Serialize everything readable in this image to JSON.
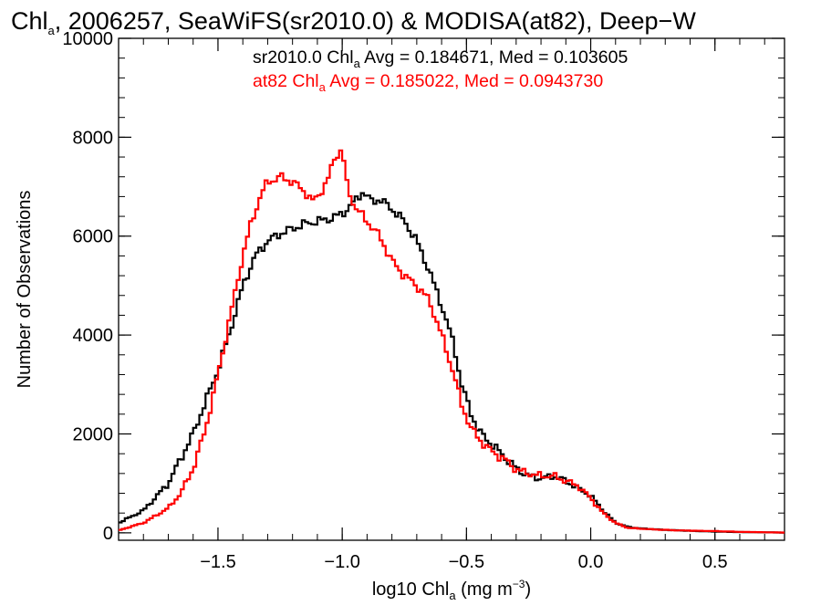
{
  "chart_data": {
    "type": "line",
    "title": {
      "prefix": "Chl",
      "sub": "a",
      "rest": ", 2006257, SeaWiFS(sr2010.0) & MODISA(at82), Deep−W"
    },
    "xlabel": {
      "prefix": "log10 Chl",
      "sub": "a",
      "mid": " (mg m",
      "sup": "−3",
      "suffix": ")"
    },
    "ylabel": "Number of Observations",
    "xlim": [
      -1.9,
      0.78
    ],
    "ylim": [
      -150,
      10000
    ],
    "x_ticks": [
      -1.5,
      -1.0,
      -0.5,
      0.0,
      0.5
    ],
    "x_tick_labels": [
      "−1.5",
      "−1.0",
      "−0.5",
      "0.0",
      "0.5"
    ],
    "y_ticks": [
      0,
      2000,
      4000,
      6000,
      8000,
      10000
    ],
    "y_tick_labels": [
      "0",
      "2000",
      "4000",
      "6000",
      "8000",
      "10000"
    ],
    "grid": false,
    "legend_position": "top",
    "series": [
      {
        "legend": {
          "prefix": "sr2010.0 Chl",
          "sub": "a",
          "rest": " Avg = 0.184671, Med = 0.103605"
        },
        "color": "#000000",
        "points": [
          [
            -1.9,
            200
          ],
          [
            -1.8,
            450
          ],
          [
            -1.7,
            1000
          ],
          [
            -1.6,
            2000
          ],
          [
            -1.5,
            3300
          ],
          [
            -1.45,
            4100
          ],
          [
            -1.4,
            5000
          ],
          [
            -1.35,
            5600
          ],
          [
            -1.3,
            5900
          ],
          [
            -1.25,
            6050
          ],
          [
            -1.2,
            6150
          ],
          [
            -1.15,
            6250
          ],
          [
            -1.1,
            6300
          ],
          [
            -1.05,
            6350
          ],
          [
            -1.0,
            6450
          ],
          [
            -0.95,
            6700
          ],
          [
            -0.92,
            6900
          ],
          [
            -0.88,
            6700
          ],
          [
            -0.85,
            6750
          ],
          [
            -0.8,
            6550
          ],
          [
            -0.75,
            6300
          ],
          [
            -0.7,
            5900
          ],
          [
            -0.65,
            5300
          ],
          [
            -0.6,
            4600
          ],
          [
            -0.55,
            3800
          ],
          [
            -0.52,
            3000
          ],
          [
            -0.48,
            2400
          ],
          [
            -0.45,
            2050
          ],
          [
            -0.4,
            1800
          ],
          [
            -0.35,
            1550
          ],
          [
            -0.3,
            1300
          ],
          [
            -0.25,
            1150
          ],
          [
            -0.2,
            1100
          ],
          [
            -0.15,
            1150
          ],
          [
            -0.1,
            1050
          ],
          [
            -0.05,
            900
          ],
          [
            0.0,
            750
          ],
          [
            0.05,
            450
          ],
          [
            0.1,
            200
          ],
          [
            0.15,
            120
          ],
          [
            0.2,
            90
          ],
          [
            0.3,
            60
          ],
          [
            0.4,
            40
          ],
          [
            0.5,
            25
          ],
          [
            0.6,
            15
          ],
          [
            0.78,
            5
          ]
        ]
      },
      {
        "legend": {
          "prefix": "at82 Chl",
          "sub": "a",
          "rest": " Avg = 0.185022, Med = 0.0943730"
        },
        "color": "#ff0000",
        "points": [
          [
            -1.9,
            50
          ],
          [
            -1.8,
            200
          ],
          [
            -1.7,
            500
          ],
          [
            -1.65,
            800
          ],
          [
            -1.6,
            1300
          ],
          [
            -1.55,
            2100
          ],
          [
            -1.5,
            3200
          ],
          [
            -1.45,
            4400
          ],
          [
            -1.4,
            5600
          ],
          [
            -1.37,
            6200
          ],
          [
            -1.33,
            6800
          ],
          [
            -1.3,
            7100
          ],
          [
            -1.27,
            7150
          ],
          [
            -1.25,
            7200
          ],
          [
            -1.2,
            7100
          ],
          [
            -1.15,
            6900
          ],
          [
            -1.12,
            6700
          ],
          [
            -1.1,
            6800
          ],
          [
            -1.06,
            7100
          ],
          [
            -1.03,
            7600
          ],
          [
            -1.0,
            7750
          ],
          [
            -0.98,
            7000
          ],
          [
            -0.95,
            6600
          ],
          [
            -0.9,
            6300
          ],
          [
            -0.85,
            6000
          ],
          [
            -0.8,
            5500
          ],
          [
            -0.75,
            5200
          ],
          [
            -0.7,
            5000
          ],
          [
            -0.65,
            4700
          ],
          [
            -0.6,
            4000
          ],
          [
            -0.55,
            3200
          ],
          [
            -0.52,
            2600
          ],
          [
            -0.48,
            2100
          ],
          [
            -0.45,
            1900
          ],
          [
            -0.4,
            1650
          ],
          [
            -0.35,
            1500
          ],
          [
            -0.3,
            1280
          ],
          [
            -0.25,
            1200
          ],
          [
            -0.2,
            1150
          ],
          [
            -0.15,
            1150
          ],
          [
            -0.1,
            1050
          ],
          [
            -0.05,
            950
          ],
          [
            0.0,
            700
          ],
          [
            0.05,
            400
          ],
          [
            0.1,
            200
          ],
          [
            0.15,
            100
          ],
          [
            0.25,
            70
          ],
          [
            0.35,
            50
          ],
          [
            0.5,
            35
          ],
          [
            0.6,
            20
          ],
          [
            0.78,
            5
          ]
        ]
      }
    ]
  }
}
